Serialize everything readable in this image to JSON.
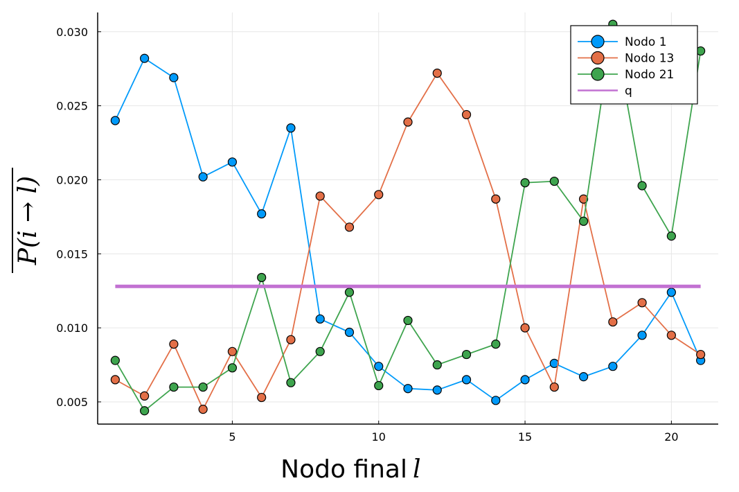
{
  "chart_data": {
    "type": "line",
    "xlabel": "Nodo final",
    "xlabel_var": "l",
    "ylabel": "P(i → l)",
    "xlim": [
      0.4,
      21.6
    ],
    "ylim": [
      0.0035,
      0.0313
    ],
    "xticks": [
      5,
      10,
      15,
      20
    ],
    "xtick_labels": [
      "5",
      "10",
      "15",
      "20"
    ],
    "yticks": [
      0.005,
      0.01,
      0.015,
      0.02,
      0.025,
      0.03
    ],
    "ytick_labels": [
      "0.005",
      "0.010",
      "0.015",
      "0.020",
      "0.025",
      "0.030"
    ],
    "grid": true,
    "legend_position": "top-right",
    "x": [
      1,
      2,
      3,
      4,
      5,
      6,
      7,
      8,
      9,
      10,
      11,
      12,
      13,
      14,
      15,
      16,
      17,
      18,
      19,
      20,
      21
    ],
    "series": [
      {
        "name": "Nodo 1",
        "color": "#009AFA",
        "marker": "circle",
        "values": [
          0.024,
          0.0282,
          0.0269,
          0.0202,
          0.0212,
          0.0177,
          0.0235,
          0.0106,
          0.0097,
          0.0074,
          0.0059,
          0.0058,
          0.0065,
          0.0051,
          0.0065,
          0.0076,
          0.0067,
          0.0074,
          0.0095,
          0.0124,
          0.0078
        ]
      },
      {
        "name": "Nodo 13",
        "color": "#E36F47",
        "marker": "circle",
        "values": [
          0.0065,
          0.0054,
          0.0089,
          0.0045,
          0.0084,
          0.0053,
          0.0092,
          0.0189,
          0.0168,
          0.019,
          0.0239,
          0.0272,
          0.0244,
          0.0187,
          0.01,
          0.006,
          0.0187,
          0.0104,
          0.0117,
          0.0095,
          0.0082
        ]
      },
      {
        "name": "Nodo 21",
        "color": "#3EA44E",
        "marker": "circle",
        "values": [
          0.0078,
          0.0044,
          0.006,
          0.006,
          0.0073,
          0.0134,
          0.0063,
          0.0084,
          0.0124,
          0.0061,
          0.0105,
          0.0075,
          0.0082,
          0.0089,
          0.0198,
          0.0199,
          0.0172,
          0.0305,
          0.0196,
          0.0162,
          0.0287
        ]
      },
      {
        "name": "q",
        "color": "#C271D2",
        "marker": "none",
        "values": [
          0.0128,
          0.0128,
          0.0128,
          0.0128,
          0.0128,
          0.0128,
          0.0128,
          0.0128,
          0.0128,
          0.0128,
          0.0128,
          0.0128,
          0.0128,
          0.0128,
          0.0128,
          0.0128,
          0.0128,
          0.0128,
          0.0128,
          0.0128,
          0.0128
        ]
      }
    ]
  }
}
